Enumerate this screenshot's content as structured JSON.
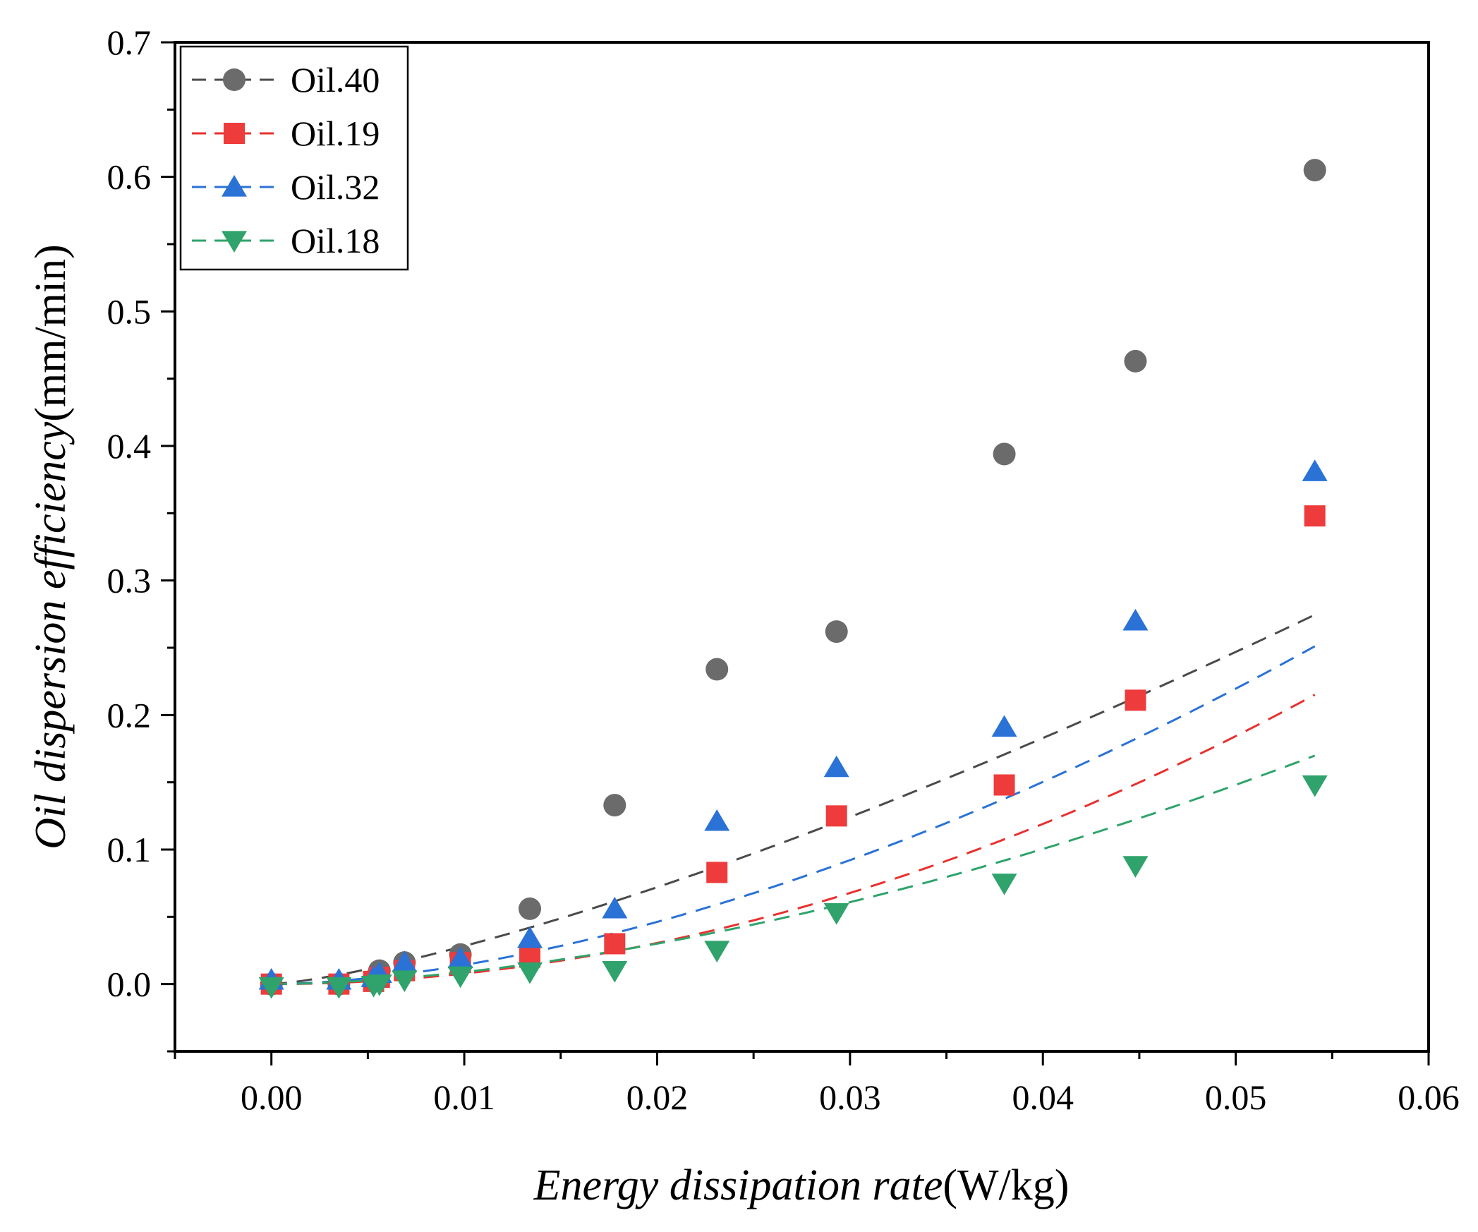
{
  "chart_data": {
    "type": "scatter",
    "xlabel_italic": "Energy dissipation rate",
    "xlabel_unit": "(W/kg)",
    "ylabel_italic": "Oil dispersion efficiency",
    "ylabel_unit": "(mm/min)",
    "xlim": [
      -0.005,
      0.06
    ],
    "ylim": [
      -0.05,
      0.7
    ],
    "xticks": [
      0.0,
      0.01,
      0.02,
      0.03,
      0.04,
      0.05,
      0.06
    ],
    "xtick_labels": [
      "0.00",
      "0.01",
      "0.02",
      "0.03",
      "0.04",
      "0.05",
      "0.06"
    ],
    "yticks": [
      0.0,
      0.1,
      0.2,
      0.3,
      0.4,
      0.5,
      0.6,
      0.7
    ],
    "ytick_labels": [
      "0.0",
      "0.1",
      "0.2",
      "0.3",
      "0.4",
      "0.5",
      "0.6",
      "0.7"
    ],
    "legend_position": "top-left",
    "x": [
      0.0,
      0.0035,
      0.0053,
      0.0056,
      0.0069,
      0.0098,
      0.0134,
      0.0178,
      0.0231,
      0.0293,
      0.038,
      0.0448,
      0.0541
    ],
    "series": [
      {
        "name": "Oil.40",
        "marker": "circle",
        "color": "#6b6b6b",
        "line_color": "#4a4a4a",
        "values": [
          0.0,
          0.0,
          0.003,
          0.01,
          0.016,
          0.022,
          0.056,
          0.133,
          0.234,
          0.262,
          0.394,
          0.463,
          0.605
        ],
        "fit": {
          "a": 13.88,
          "b": 1.345
        }
      },
      {
        "name": "Oil.19",
        "marker": "square",
        "color": "#ee3b3b",
        "line_color": "#e8312f",
        "values": [
          0.0,
          0.0,
          0.002,
          0.005,
          0.01,
          0.016,
          0.02,
          0.03,
          0.083,
          0.125,
          0.148,
          0.211,
          0.348
        ],
        "fit": {
          "a": 65.4,
          "b": 1.96
        }
      },
      {
        "name": "Oil.32",
        "marker": "triangle-up",
        "color": "#2a72d6",
        "line_color": "#2a72d6",
        "values": [
          0.003,
          0.003,
          0.005,
          0.008,
          0.016,
          0.019,
          0.034,
          0.056,
          0.121,
          0.161,
          0.191,
          0.27,
          0.381
        ],
        "fit": {
          "a": 35.76,
          "b": 1.7
        }
      },
      {
        "name": "Oil.18",
        "marker": "triangle-down",
        "color": "#2fa36b",
        "line_color": "#2fa36b",
        "values": [
          -0.002,
          -0.002,
          -0.001,
          0.0,
          0.003,
          0.006,
          0.009,
          0.01,
          0.025,
          0.053,
          0.075,
          0.088,
          0.148
        ],
        "fit": {
          "a": 27.18,
          "b": 1.74
        }
      }
    ]
  }
}
